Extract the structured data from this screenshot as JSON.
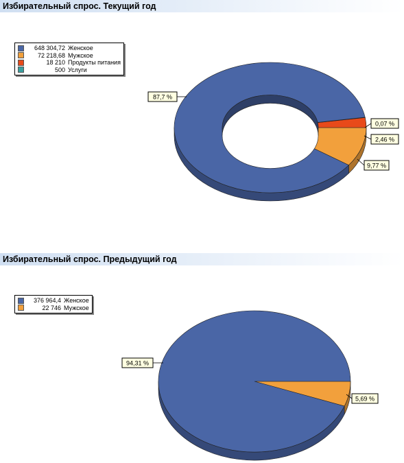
{
  "chart_data": [
    {
      "type": "pie",
      "title": "Избирательный спрос.   Текущий год",
      "donut": true,
      "legend_position": "top-left",
      "series": [
        {
          "name": "Женское",
          "value": 648304.72,
          "value_label": "648 304,72",
          "percent_label": "87,7 %",
          "color": "#4a66a6"
        },
        {
          "name": "Мужское",
          "value": 72218.68,
          "value_label": "72 218,68",
          "percent_label": "9,77 %",
          "color": "#f2a03c"
        },
        {
          "name": "Продукты питания",
          "value": 18210,
          "value_label": "18 210",
          "percent_label": "2,46 %",
          "color": "#e84a1a"
        },
        {
          "name": "Услуги",
          "value": 500,
          "value_label": "500",
          "percent_label": "0,07 %",
          "color": "#3aa0a0"
        }
      ]
    },
    {
      "type": "pie",
      "title": "Избирательный спрос.   Предыдущий год",
      "donut": false,
      "legend_position": "top-left",
      "series": [
        {
          "name": "Женское",
          "value": 376964.4,
          "value_label": "376 964,4",
          "percent_label": "94,31 %",
          "color": "#4a66a6"
        },
        {
          "name": "Мужское",
          "value": 22746,
          "value_label": "22 746",
          "percent_label": "5,69 %",
          "color": "#f2a03c"
        }
      ]
    }
  ]
}
